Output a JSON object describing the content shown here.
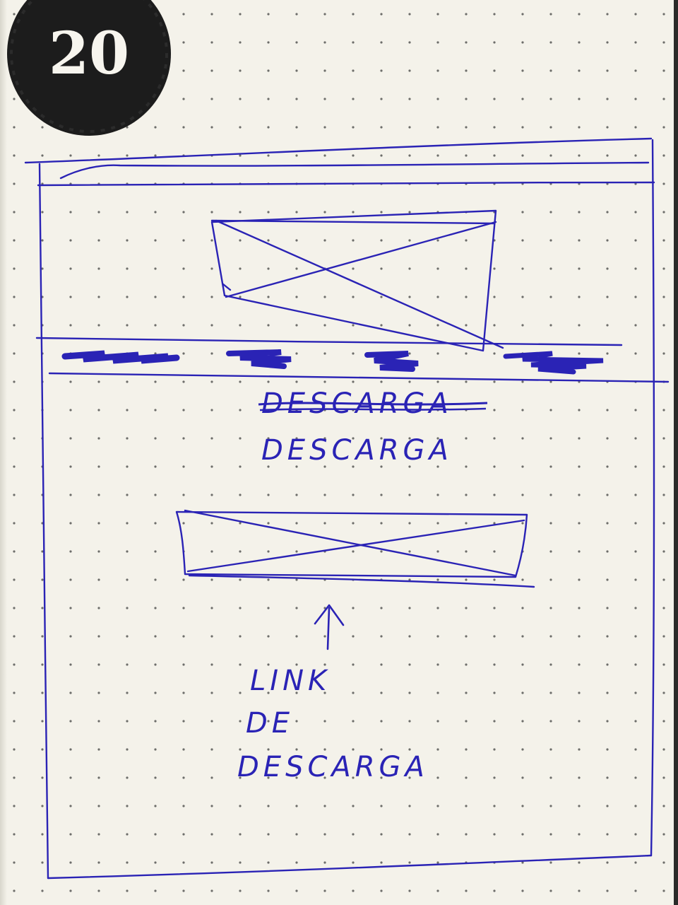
{
  "page_number": "20",
  "download_heading": "DESCARGA",
  "scratched_text": "DESCARGA",
  "annotation_lines": [
    "LINK",
    "DE",
    "DESCARGA"
  ],
  "colors": {
    "ink": "#2a23b5",
    "paper": "#f4f2ea",
    "badge": "#1c1c1c"
  }
}
